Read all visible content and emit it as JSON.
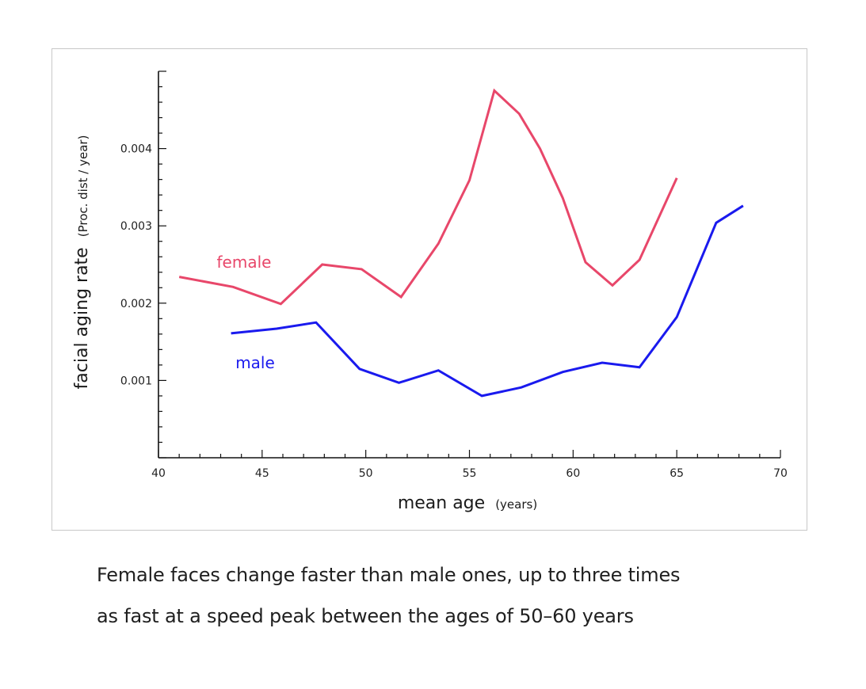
{
  "chart_data": {
    "type": "line",
    "xlabel": "mean age",
    "xlabel_unit": "(years)",
    "ylabel": "facial aging rate",
    "ylabel_unit": "(Proc. dist / year)",
    "xlim": [
      40,
      70
    ],
    "ylim": [
      0,
      0.005
    ],
    "x_ticks": [
      40,
      45,
      50,
      55,
      60,
      65,
      70
    ],
    "y_ticks": [
      0.001,
      0.002,
      0.003,
      0.004
    ],
    "x_tick_labels": [
      "40",
      "45",
      "50",
      "55",
      "60",
      "65",
      "70"
    ],
    "y_tick_labels": [
      "0.001",
      "0.002",
      "0.003",
      "0.004"
    ],
    "grid": false,
    "series": [
      {
        "name": "female",
        "color": "#e8476a",
        "x": [
          41.0,
          43.6,
          45.9,
          47.9,
          49.8,
          51.7,
          53.5,
          55.0,
          56.2,
          57.4,
          58.4,
          59.5,
          60.6,
          61.9,
          63.2,
          65.0
        ],
        "y": [
          0.00234,
          0.00221,
          0.00199,
          0.0025,
          0.00244,
          0.00208,
          0.00277,
          0.00359,
          0.00475,
          0.00445,
          0.004,
          0.00336,
          0.00253,
          0.00223,
          0.00256,
          0.00362
        ]
      },
      {
        "name": "male",
        "color": "#1a1aee",
        "x": [
          43.5,
          45.7,
          47.6,
          49.7,
          51.6,
          53.5,
          55.6,
          57.5,
          59.5,
          61.4,
          63.2,
          65.0,
          66.9,
          68.2
        ],
        "y": [
          0.00161,
          0.00167,
          0.00175,
          0.00115,
          0.00097,
          0.00113,
          0.0008,
          0.00091,
          0.00111,
          0.00123,
          0.00117,
          0.00182,
          0.00304,
          0.00326
        ]
      }
    ]
  },
  "caption": {
    "line1": "Female faces change faster than male ones, up to three times",
    "line2": "as fast at a speed peak between the ages of 50–60 years"
  }
}
